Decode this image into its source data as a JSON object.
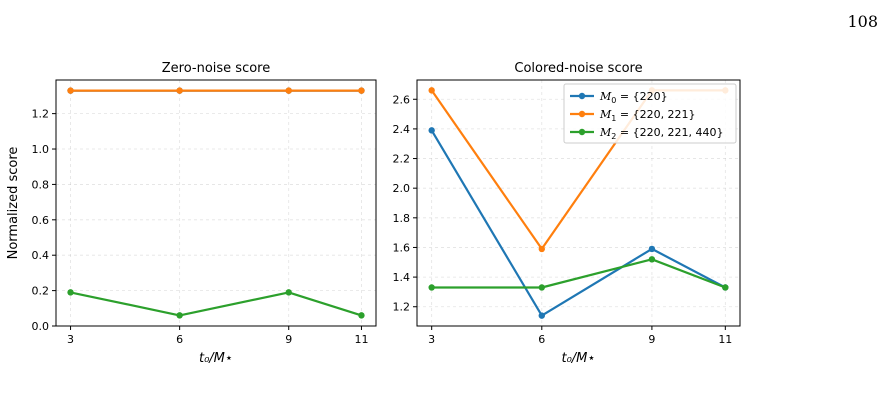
{
  "page_number": "108",
  "colors": {
    "M0": "#1f77b4",
    "M1": "#ff7f0e",
    "M2": "#2ca02c"
  },
  "chart_data": [
    {
      "type": "line",
      "title": "Zero-noise score",
      "xlabel": "t₀/M⋆",
      "ylabel": "Normalized score",
      "x": [
        3,
        6,
        9,
        11
      ],
      "xticks": [
        "3",
        "6",
        "9",
        "11"
      ],
      "xlim": [
        2.6,
        11.4
      ],
      "ylim": [
        0.0,
        1.39
      ],
      "yticks": [
        0.0,
        0.2,
        0.4,
        0.6,
        0.8,
        1.0,
        1.2
      ],
      "ytick_labels": [
        "0.0",
        "0.2",
        "0.4",
        "0.6",
        "0.8",
        "1.0",
        "1.2"
      ],
      "grid": true,
      "series": [
        {
          "key": "M0",
          "values": [
            1.33,
            1.33,
            1.33,
            1.33
          ]
        },
        {
          "key": "M1",
          "values": [
            1.33,
            1.33,
            1.33,
            1.33
          ]
        },
        {
          "key": "M2",
          "values": [
            0.19,
            0.06,
            0.19,
            0.06
          ]
        }
      ]
    },
    {
      "type": "line",
      "title": "Colored-noise score",
      "xlabel": "t₀/M⋆",
      "ylabel": "",
      "x": [
        3,
        6,
        9,
        11
      ],
      "xticks": [
        "3",
        "6",
        "9",
        "11"
      ],
      "xlim": [
        2.6,
        11.4
      ],
      "ylim": [
        1.07,
        2.73
      ],
      "yticks": [
        1.2,
        1.4,
        1.6,
        1.8,
        2.0,
        2.2,
        2.4,
        2.6
      ],
      "ytick_labels": [
        "1.2",
        "1.4",
        "1.6",
        "1.8",
        "2.0",
        "2.2",
        "2.4",
        "2.6"
      ],
      "grid": true,
      "legend": {
        "placement": "top-right",
        "entries": [
          {
            "key": "M0",
            "sub": "0",
            "set": " = {220}"
          },
          {
            "key": "M1",
            "sub": "1",
            "set": " = {220, 221}"
          },
          {
            "key": "M2",
            "sub": "2",
            "set": " = {220, 221, 440}"
          }
        ]
      },
      "series": [
        {
          "key": "M0",
          "name": "M₀ = {220}",
          "values": [
            2.39,
            1.14,
            1.59,
            1.33
          ]
        },
        {
          "key": "M1",
          "name": "M₁ = {220, 221}",
          "values": [
            2.66,
            1.59,
            2.66,
            2.66
          ]
        },
        {
          "key": "M2",
          "name": "M₂ = {220, 221, 440}",
          "values": [
            1.33,
            1.33,
            1.52,
            1.33
          ]
        }
      ]
    }
  ]
}
